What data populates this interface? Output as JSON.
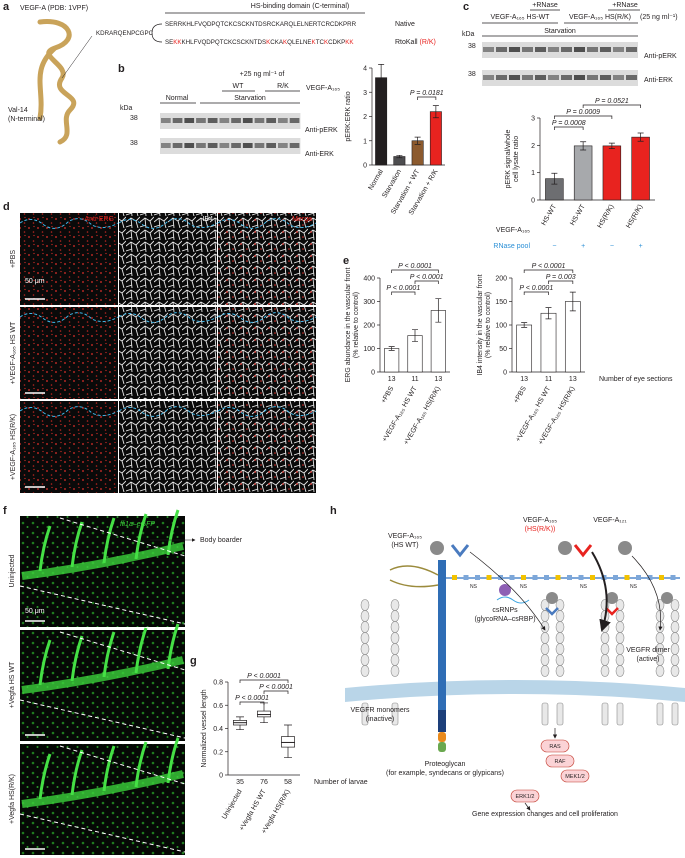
{
  "panel_labels": [
    "a",
    "b",
    "c",
    "d",
    "e",
    "f",
    "g",
    "h"
  ],
  "panel_a": {
    "structure": "VEGF-A (PDB: 1VPF)",
    "domain": "HS-binding domain (C-terminal)",
    "linker": "KDRARQENPCGPC",
    "native_seq": "SERRKHLFVQDPQTCKCSCKNTDSRCKARQLELNERTCRCDKPRR",
    "native": "Native",
    "mutant_seq": [
      {
        "text": "SE",
        "red": false
      },
      {
        "text": "KK",
        "red": true
      },
      {
        "text": "KHLFVQDPQTCKCSCKNTDS",
        "red": false
      },
      {
        "text": "K",
        "red": true
      },
      {
        "text": "CKA",
        "red": false
      },
      {
        "text": "K",
        "red": true
      },
      {
        "text": "QLELNE",
        "red": false
      },
      {
        "text": "K",
        "red": true
      },
      {
        "text": "TC",
        "red": false
      },
      {
        "text": "K",
        "red": true
      },
      {
        "text": "CDKP",
        "red": false
      },
      {
        "text": "KK",
        "red": true
      }
    ],
    "mutant_name": "RtoKall",
    "mutant_tag": "(R/K)",
    "terminus": [
      "Val-14",
      "(N-terminal)"
    ]
  },
  "panel_b": {
    "conc": "+25 ng ml⁻¹ of",
    "wt": "WT",
    "rk": "R/K",
    "ligand": "VEGF-A₁₆₅",
    "normal": "Normal",
    "starvation": "Starvation",
    "kda": "kDa",
    "mw": [
      "38",
      "38"
    ],
    "blots": [
      "Anti-pERK",
      "Anti-ERK"
    ]
  },
  "panel_c": {
    "rnase": [
      "+RNase",
      "+RNase"
    ],
    "groups": [
      "VEGF-A₁₆₅ HS-WT",
      "VEGF-A₁₆₅ HS(R/K)"
    ],
    "conc": "(25 ng ml⁻¹)",
    "starvation": "Starvation",
    "kda": "kDa",
    "mw": [
      "38",
      "38"
    ],
    "blots": [
      "Anti-pERK",
      "Anti-ERK"
    ]
  },
  "panel_d": {
    "stains": [
      "Anti-ERG",
      "IB4",
      "Merge"
    ],
    "rows": [
      "+PBS",
      "+VEGF-A₁₆₅ HS WT",
      "+VEGF-A₁₆₅ HS(R/K)"
    ],
    "scale": "50 μm"
  },
  "panel_f": {
    "reporter": "fli1a–eGFP",
    "boundary": "Body boarder",
    "rows": [
      "Uninjected",
      "+Vegfa HS WT",
      "+Vegfa HS(R/K)"
    ],
    "scale": "50 μm"
  },
  "panel_h": {
    "ligand_wt": [
      "VEGF-A₁₆₅",
      "(HS WT)"
    ],
    "ligand_rk": [
      "VEGF-A₁₆₅",
      "(HS(R/K))"
    ],
    "ligand_121": "VEGF-A₁₂₁",
    "rnp": [
      "csRNPs",
      "(glycoRNA–csRBP)"
    ],
    "dimer": [
      "VEGFR dimer",
      "(active)"
    ],
    "monomer": [
      "VEGFR monomers",
      "(inactive)"
    ],
    "proteoglycan": [
      "Proteoglycan",
      "(for example, syndecans or glypicans)"
    ],
    "kinases": [
      "RAS",
      "RAF",
      "MEK1/2",
      "ERK1/2"
    ],
    "outcome": "Gene expression changes and cell proliferation",
    "ns": "NS"
  },
  "chart_data": [
    {
      "type": "bar",
      "ylabel": [
        "pERK:ERK ratio"
      ],
      "categories": [
        "Normal",
        "Starvation",
        "Starvation + WT",
        "Starvation + R/K"
      ],
      "values": [
        3.6,
        0.35,
        1.0,
        2.2
      ],
      "errors": [
        0.55,
        0.05,
        0.15,
        0.25
      ],
      "colors": [
        "#231f20",
        "#4d4d4f",
        "#8c5a2e",
        "#e8231f"
      ],
      "ylim": [
        0,
        4
      ],
      "yticks": [
        0,
        1,
        2,
        3,
        4
      ],
      "annotations": [
        "P = 0.0181"
      ]
    },
    {
      "type": "bar",
      "ylabel": [
        "pERK signal/whole",
        "cell lysate ratio"
      ],
      "categories": [
        "HS-WT",
        "HS-WT",
        "HS(R/K)",
        "HS(R/K)"
      ],
      "values": [
        0.78,
        1.98,
        1.98,
        2.3
      ],
      "errors": [
        0.2,
        0.15,
        0.1,
        0.15
      ],
      "colors": [
        "#6d6e71",
        "#a7a9ac",
        "#e8231f",
        "#e8231f"
      ],
      "ylim": [
        0,
        3
      ],
      "yticks": [
        0,
        1,
        2,
        3
      ],
      "annotations": [
        "P = 0.0008",
        "P = 0.0009",
        "P = 0.0521"
      ],
      "row_labels": [
        "VEGF-A₁₆₅",
        "RNase pool"
      ],
      "rnase": [
        "−",
        "+",
        "−",
        "+"
      ]
    },
    {
      "type": "bar",
      "ylabel": [
        "ERG abundance in the vascular front",
        "(% relative to control)"
      ],
      "categories": [
        "+PBS",
        "+VEGF-A₁₆₅ HS WT",
        "+VEGF-A₁₆₅ HS(R/K)"
      ],
      "values": [
        100,
        155,
        262
      ],
      "errors": [
        8,
        25,
        50
      ],
      "colors": [
        "#ffffff",
        "#ffffff",
        "#ffffff"
      ],
      "ylim": [
        0,
        400
      ],
      "yticks": [
        0,
        100,
        200,
        300,
        400
      ],
      "n": [
        13,
        11,
        13
      ],
      "annotations": [
        "P < 0.0001",
        "P < 0.0001",
        "P < 0.0001"
      ]
    },
    {
      "type": "bar",
      "ylabel": [
        "IB4 intensity in the vascular front",
        "(% relative to control)"
      ],
      "categories": [
        "+PBS",
        "+VEGF-A₁₆₅ HS WT",
        "+VEGF-A₁₆₅ HS(R/K)"
      ],
      "values": [
        100,
        125,
        150
      ],
      "errors": [
        5,
        12,
        20
      ],
      "colors": [
        "#ffffff",
        "#ffffff",
        "#ffffff"
      ],
      "ylim": [
        0,
        200
      ],
      "yticks": [
        0,
        50,
        100,
        150,
        200
      ],
      "n": [
        13,
        11,
        13
      ],
      "n_label": "Number of eye sections",
      "annotations": [
        "P < 0.0001",
        "P = 0.003",
        "P < 0.0001"
      ]
    },
    {
      "type": "box",
      "ylabel": [
        "Normalized vessel length"
      ],
      "categories": [
        "Uninjected",
        "+Vegfa HS WT",
        "+Vegfa HS(R/K)"
      ],
      "median": [
        0.45,
        0.52,
        0.28
      ],
      "q1": [
        0.43,
        0.5,
        0.24
      ],
      "q3": [
        0.47,
        0.55,
        0.33
      ],
      "whisker_low": [
        0.39,
        0.45,
        0.15
      ],
      "whisker_high": [
        0.5,
        0.62,
        0.43
      ],
      "ylim": [
        0,
        0.8
      ],
      "yticks": [
        0,
        0.2,
        0.4,
        0.6,
        0.8
      ],
      "n": [
        35,
        76,
        58
      ],
      "n_label": "Number of larvae",
      "annotations": [
        "P < 0.0001",
        "P < 0.0001",
        "P < 0.0001"
      ]
    }
  ]
}
